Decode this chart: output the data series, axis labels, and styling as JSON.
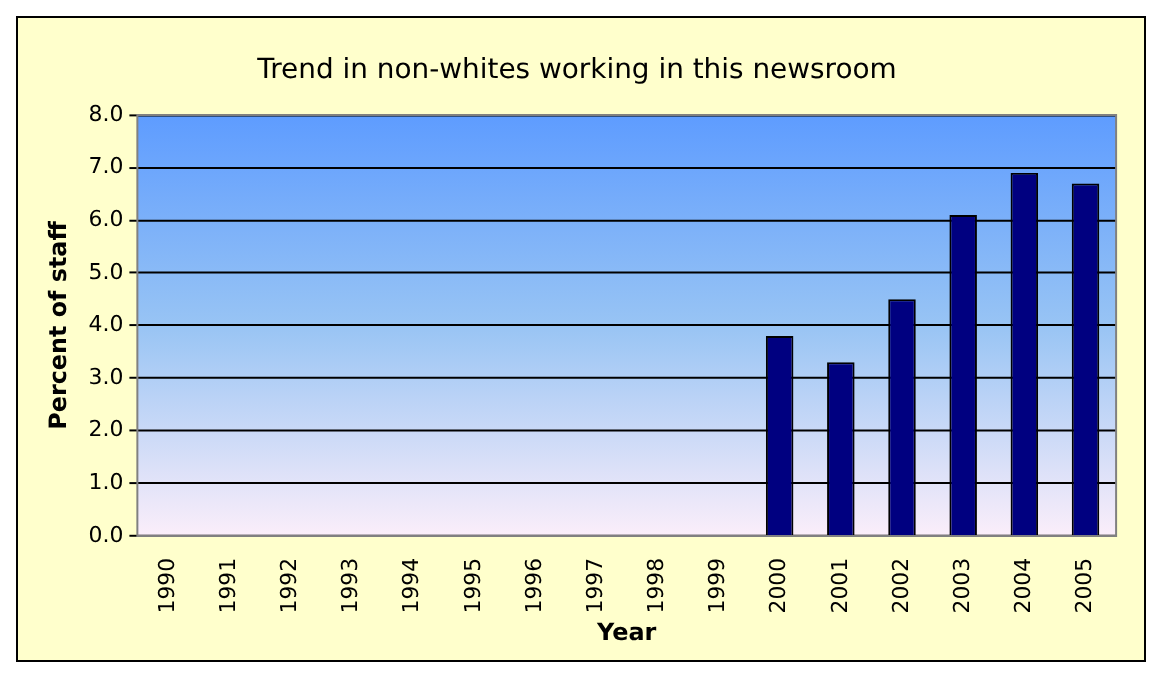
{
  "chart_data": {
    "type": "bar",
    "title": "Trend in non-whites working in this newsroom",
    "xlabel": "Year",
    "ylabel": "Percent of staff",
    "categories": [
      "1990",
      "1991",
      "1992",
      "1993",
      "1994",
      "1995",
      "1996",
      "1997",
      "1998",
      "1999",
      "2000",
      "2001",
      "2002",
      "2003",
      "2004",
      "2005"
    ],
    "values": [
      null,
      null,
      null,
      null,
      null,
      null,
      null,
      null,
      null,
      null,
      3.8,
      3.3,
      4.5,
      6.1,
      6.9,
      6.7
    ],
    "color": "#000080",
    "ylim": [
      0,
      8
    ],
    "yticks": [
      {
        "value": 0,
        "label": "0.0"
      },
      {
        "value": 1,
        "label": "1.0"
      },
      {
        "value": 2,
        "label": "2.0"
      },
      {
        "value": 3,
        "label": "3.0"
      },
      {
        "value": 4,
        "label": "4.0"
      },
      {
        "value": 5,
        "label": "5.0"
      },
      {
        "value": 6,
        "label": "6.0"
      },
      {
        "value": 7,
        "label": "7.0"
      },
      {
        "value": 8,
        "label": "8.0"
      }
    ],
    "grid": "y",
    "legend": false
  }
}
